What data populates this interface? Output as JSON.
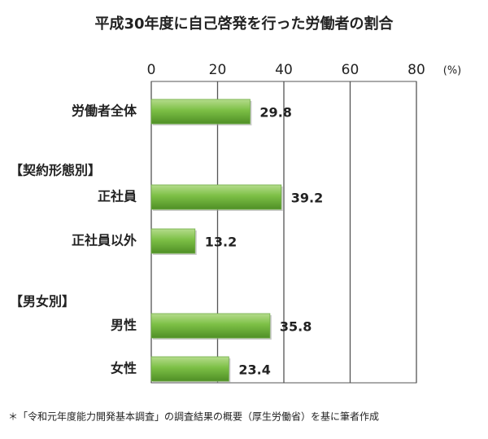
{
  "chart_data": {
    "type": "bar",
    "orientation": "horizontal",
    "title": "平成30年度に自己啓発を行った労働者の割合",
    "unit_label": "(%)",
    "categories": [
      "労働者全体",
      "【契約形態別】",
      "正社員",
      "正社員以外",
      "【男女別】",
      "男性",
      "女性"
    ],
    "values": [
      29.8,
      null,
      39.2,
      13.2,
      null,
      35.8,
      23.4
    ],
    "color": "#70ad47",
    "xlim": [
      0,
      80
    ],
    "xticks": [
      0,
      20,
      40,
      60,
      80
    ],
    "grid": true,
    "footnote": "＊「令和元年度能力開発基本調査」の調査結果の概要（厚生労働省）を基に筆者作成"
  }
}
